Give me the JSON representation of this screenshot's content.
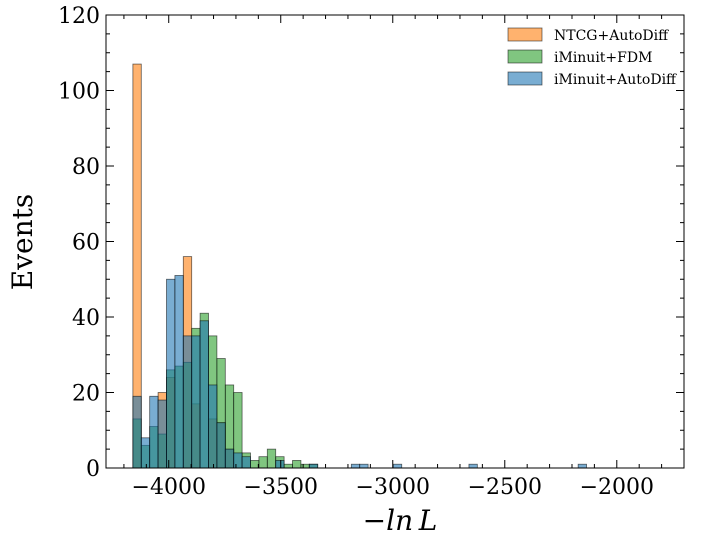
{
  "chart_data": {
    "type": "histogram",
    "xlabel": "−ln L",
    "ylabel": "Events",
    "xlim": [
      -4280,
      -1700
    ],
    "ylim": [
      0,
      120
    ],
    "bin_start": -4160,
    "bin_width": 37.5,
    "x_ticks": [
      -4000,
      -3500,
      -3000,
      -2500,
      -2000
    ],
    "x_tick_labels": [
      "−4000",
      "−3500",
      "−3000",
      "−2500",
      "−2000"
    ],
    "y_ticks": [
      0,
      20,
      40,
      60,
      80,
      100,
      120
    ],
    "y_tick_labels": [
      "0",
      "20",
      "40",
      "60",
      "80",
      "100",
      "120"
    ],
    "legend_position": "top-right",
    "series": [
      {
        "name": "NTCG+AutoDiff",
        "color": "#ff7f0e",
        "values": [
          107,
          0,
          0,
          20,
          24,
          0,
          56,
          17,
          0,
          13,
          12,
          5,
          0,
          0,
          0,
          0,
          0,
          0,
          0,
          0,
          0,
          0,
          0,
          0,
          0,
          0,
          0,
          0,
          0,
          0,
          0,
          0,
          0,
          0,
          0,
          0,
          0,
          0,
          0,
          0,
          0,
          0,
          0,
          0,
          0,
          0,
          0,
          0,
          0,
          0,
          0,
          0,
          0,
          0,
          0,
          0,
          0,
          0,
          0,
          0,
          0,
          0,
          0,
          0
        ]
      },
      {
        "name": "iMinuit+FDM",
        "color": "#2ca02c",
        "values": [
          13,
          6,
          11,
          9,
          26,
          27,
          28,
          37,
          41,
          35,
          29,
          22,
          20,
          4,
          2,
          3,
          5,
          3,
          1,
          2,
          1,
          1,
          0,
          0,
          0,
          0,
          0,
          0,
          0,
          0,
          0,
          0,
          0,
          0,
          0,
          0,
          0,
          0,
          0,
          0,
          0,
          0,
          0,
          0,
          0,
          0,
          0,
          0,
          0,
          0,
          0,
          0,
          0,
          0,
          0,
          0,
          0,
          0,
          0,
          0,
          0,
          0,
          0,
          0
        ]
      },
      {
        "name": "iMinuit+AutoDiff",
        "color": "#1f77b4",
        "values": [
          19,
          8,
          19,
          18,
          50,
          51,
          35,
          35,
          39,
          22,
          12,
          5,
          4,
          3,
          0,
          0,
          0,
          2,
          0,
          0,
          0,
          1,
          0,
          0,
          0,
          0,
          1,
          1,
          0,
          0,
          0,
          1,
          0,
          0,
          0,
          0,
          0,
          0,
          0,
          0,
          1,
          0,
          0,
          0,
          0,
          0,
          0,
          0,
          0,
          0,
          0,
          0,
          0,
          1,
          0,
          0,
          0,
          0,
          0,
          0,
          0,
          0,
          0,
          0
        ]
      }
    ]
  }
}
